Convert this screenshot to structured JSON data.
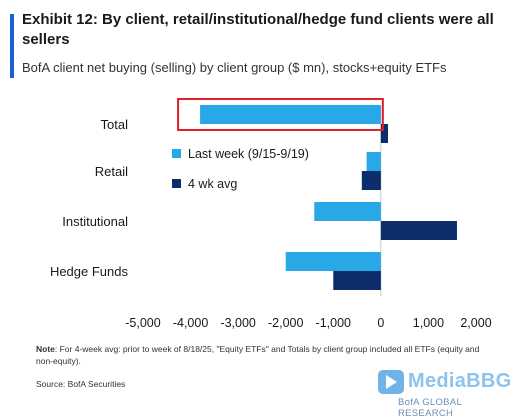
{
  "title": "Exhibit 12: By client, retail/institutional/hedge fund clients were all sellers",
  "subtitle": "BofA client net buying (selling) by client group ($ mn), stocks+equity ETFs",
  "note_label": "Note",
  "note_text": ": For 4-week avg: prior to week of 8/18/25, \"Equity ETFs\" and Totals by client group included all ETFs (equity and non-equity).",
  "source": "Source: BofA Securities",
  "watermark": {
    "name": "MediaBBG",
    "sub": "BofA GLOBAL RESEARCH"
  },
  "colors": {
    "last_week": "#29a8e8",
    "avg": "#0c2d6b",
    "highlight": "#e0202a",
    "title_accent": "#1f5fd6"
  },
  "chart_data": {
    "type": "bar",
    "orientation": "horizontal",
    "categories": [
      "Total",
      "Retail",
      "Institutional",
      "Hedge Funds"
    ],
    "series": [
      {
        "name": "Last week (9/15-9/19)",
        "values": [
          -3800,
          -300,
          -1400,
          -2000
        ]
      },
      {
        "name": "4 wk avg",
        "values": [
          150,
          -400,
          1600,
          -1000
        ]
      }
    ],
    "xlim": [
      -5000,
      2000
    ],
    "xticks": [
      -5000,
      -4000,
      -3000,
      -2000,
      -1000,
      0,
      1000,
      2000
    ],
    "xtick_labels": [
      "-5,000",
      "-4,000",
      "-3,000",
      "-2,000",
      "-1,000",
      "0",
      "1,000",
      "2,000"
    ],
    "legend_position": "inside-left",
    "grid": false,
    "highlight": {
      "category": "Total",
      "series": "Last week (9/15-9/19)"
    }
  }
}
